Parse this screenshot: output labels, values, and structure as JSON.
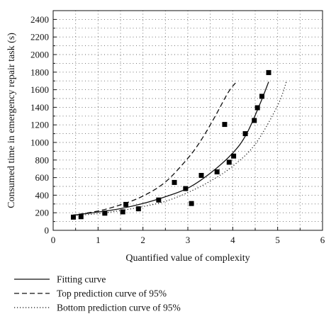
{
  "chart_data": {
    "type": "scatter",
    "title": "",
    "xlabel": "Quantified value of complexity",
    "ylabel": "Consumed time in emergency repair task (s)",
    "xlim": [
      0,
      6
    ],
    "ylim": [
      0,
      2500
    ],
    "x_ticks": [
      0,
      1,
      2,
      3,
      4,
      5,
      6
    ],
    "y_ticks": [
      0,
      200,
      400,
      600,
      800,
      1000,
      1200,
      1400,
      1600,
      1800,
      2000,
      2200,
      2400
    ],
    "grid": "dotted",
    "legend_position": "below plot",
    "points": [
      {
        "x": 0.45,
        "y": 150
      },
      {
        "x": 0.62,
        "y": 155
      },
      {
        "x": 1.15,
        "y": 195
      },
      {
        "x": 1.55,
        "y": 210
      },
      {
        "x": 1.62,
        "y": 295
      },
      {
        "x": 1.9,
        "y": 245
      },
      {
        "x": 2.35,
        "y": 345
      },
      {
        "x": 2.7,
        "y": 545
      },
      {
        "x": 2.95,
        "y": 475
      },
      {
        "x": 3.08,
        "y": 305
      },
      {
        "x": 3.3,
        "y": 625
      },
      {
        "x": 3.65,
        "y": 665
      },
      {
        "x": 3.82,
        "y": 1205
      },
      {
        "x": 3.92,
        "y": 775
      },
      {
        "x": 4.02,
        "y": 845
      },
      {
        "x": 4.28,
        "y": 1100
      },
      {
        "x": 4.48,
        "y": 1250
      },
      {
        "x": 4.55,
        "y": 1395
      },
      {
        "x": 4.65,
        "y": 1525
      },
      {
        "x": 4.8,
        "y": 1795
      }
    ],
    "series": [
      {
        "name": "Fitting curve",
        "style": "solid",
        "x": [
          0.4,
          1.0,
          1.5,
          2.0,
          2.5,
          3.0,
          3.5,
          4.0,
          4.3,
          4.6,
          4.8
        ],
        "y": [
          170,
          208,
          247,
          305,
          382,
          480,
          650,
          880,
          1090,
          1430,
          1690
        ]
      },
      {
        "name": "Top prediction curve of 95%",
        "style": "dashed",
        "x": [
          0.4,
          1.0,
          1.5,
          2.0,
          2.5,
          3.0,
          3.3,
          3.6,
          3.9,
          4.1
        ],
        "y": [
          170,
          220,
          290,
          390,
          550,
          820,
          1030,
          1290,
          1570,
          1700
        ]
      },
      {
        "name": "Bottom prediction curve of 95%",
        "style": "dotted",
        "x": [
          0.4,
          1.0,
          1.5,
          2.0,
          2.5,
          3.0,
          3.5,
          4.0,
          4.5,
          5.0,
          5.2
        ],
        "y": [
          165,
          190,
          225,
          270,
          330,
          430,
          560,
          730,
          980,
          1420,
          1700
        ]
      }
    ]
  }
}
